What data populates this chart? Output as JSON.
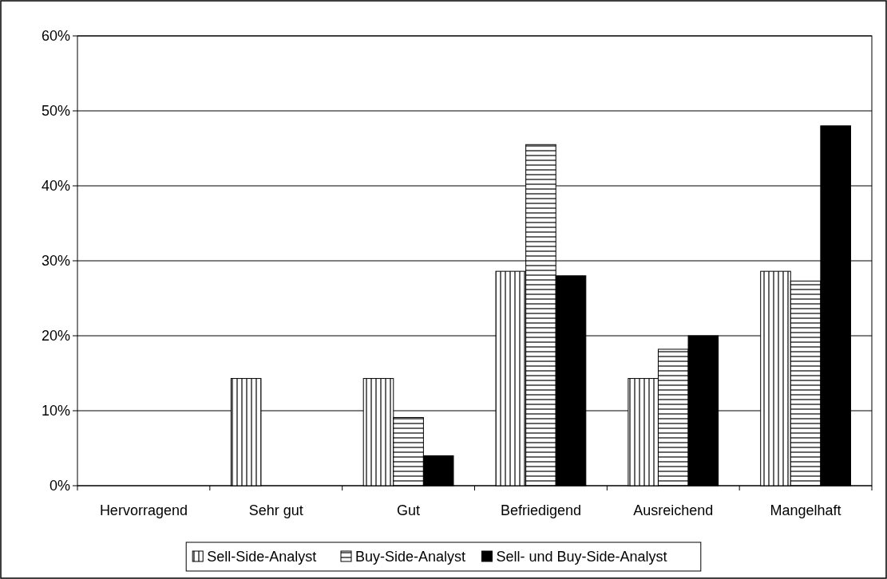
{
  "chart_data": {
    "type": "bar",
    "categories": [
      "Hervorragend",
      "Sehr gut",
      "Gut",
      "Befriedigend",
      "Ausreichend",
      "Mangelhaft"
    ],
    "series": [
      {
        "name": "Sell-Side-Analyst",
        "color": "#000000",
        "values": [
          0,
          14.3,
          14.3,
          28.6,
          14.3,
          28.6
        ]
      },
      {
        "name": "Buy-Side-Analyst",
        "color": "#000000",
        "values": [
          0,
          0,
          9.1,
          45.5,
          18.2,
          27.3
        ]
      },
      {
        "name": "Sell- und Buy-Side-Analyst",
        "color": "#000000",
        "values": [
          0,
          0,
          4,
          28,
          20,
          48
        ]
      }
    ],
    "ylim": [
      0,
      60
    ],
    "yticks": [
      {
        "value": 0,
        "label": "0%"
      },
      {
        "value": 10,
        "label": "10%"
      },
      {
        "value": 20,
        "label": "20%"
      },
      {
        "value": 30,
        "label": "30%"
      },
      {
        "value": 40,
        "label": "40%"
      },
      {
        "value": 50,
        "label": "50%"
      },
      {
        "value": 60,
        "label": "60%"
      }
    ],
    "grid": "y",
    "legend": "bottom"
  }
}
